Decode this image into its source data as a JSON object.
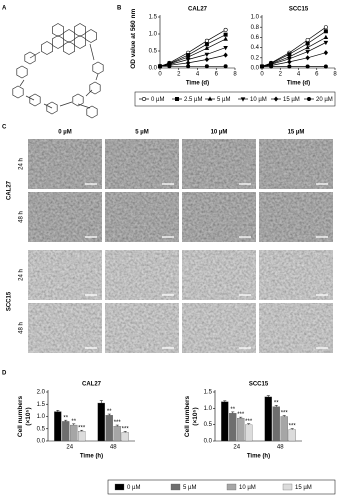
{
  "panel_labels": [
    "A",
    "B",
    "C",
    "D"
  ],
  "microscopy": {
    "columns": [
      "0 µM",
      "5 µM",
      "10 µM",
      "15 µM"
    ],
    "groups": [
      {
        "name": "CAL27",
        "rows": [
          "24 h",
          "48 h"
        ]
      },
      {
        "name": "SCC15",
        "rows": [
          "24 h",
          "48 h"
        ]
      }
    ]
  },
  "chart_data": [
    {
      "type": "line",
      "title": "CAL27",
      "xlabel": "Time (d)",
      "ylabel": "OD value at 560 nm",
      "x": [
        0,
        1,
        3,
        5,
        7
      ],
      "xlim": [
        0,
        8
      ],
      "xticks": [
        0,
        2,
        4,
        6,
        8
      ],
      "ylim": [
        0,
        1.5
      ],
      "yticks": [
        {
          "value": 0,
          "label": "0.0"
        },
        {
          "value": 0.5,
          "label": "0.5"
        },
        {
          "value": 1,
          "label": "1.0"
        },
        {
          "value": 1.5,
          "label": "1.5"
        }
      ],
      "legend": "bottom",
      "series": [
        {
          "name": "0 µM",
          "color": "#000000",
          "marker": "circle-open",
          "values": [
            0.05,
            0.15,
            0.45,
            0.8,
            1.12
          ]
        },
        {
          "name": "2.5 µM",
          "color": "#000000",
          "marker": "square",
          "values": [
            0.05,
            0.13,
            0.38,
            0.7,
            0.98
          ]
        },
        {
          "name": "5 µM",
          "color": "#000000",
          "marker": "triangle-up",
          "values": [
            0.05,
            0.12,
            0.32,
            0.58,
            0.85
          ]
        },
        {
          "name": "10 µM",
          "color": "#000000",
          "marker": "triangle-down",
          "values": [
            0.05,
            0.1,
            0.25,
            0.4,
            0.6
          ]
        },
        {
          "name": "15 µM",
          "color": "#000000",
          "marker": "diamond",
          "values": [
            0.05,
            0.08,
            0.15,
            0.25,
            0.38
          ]
        },
        {
          "name": "20 µM",
          "color": "#000000",
          "marker": "circle-filled",
          "values": [
            0.05,
            0.05,
            0.05,
            0.05,
            0.05
          ]
        }
      ]
    },
    {
      "type": "line",
      "title": "SCC15",
      "xlabel": "Time (d)",
      "x": [
        0,
        1,
        3,
        5,
        7
      ],
      "xlim": [
        0,
        8
      ],
      "xticks": [
        0,
        2,
        4,
        6,
        8
      ],
      "ylim": [
        0,
        1
      ],
      "yticks": [
        {
          "value": 0,
          "label": "0.0"
        },
        {
          "value": 0.2,
          "label": "0.2"
        },
        {
          "value": 0.4,
          "label": "0.4"
        },
        {
          "value": 0.6,
          "label": "0.6"
        },
        {
          "value": 0.8,
          "label": "0.8"
        },
        {
          "value": 1,
          "label": "1.0"
        }
      ],
      "series": [
        {
          "name": "0 µM",
          "color": "#000000",
          "marker": "circle-open",
          "values": [
            0.03,
            0.1,
            0.3,
            0.55,
            0.8
          ]
        },
        {
          "name": "2.5 µM",
          "color": "#000000",
          "marker": "square",
          "values": [
            0.03,
            0.09,
            0.27,
            0.48,
            0.72
          ]
        },
        {
          "name": "5 µM",
          "color": "#000000",
          "marker": "triangle-up",
          "values": [
            0.03,
            0.08,
            0.22,
            0.4,
            0.6
          ]
        },
        {
          "name": "10 µM",
          "color": "#000000",
          "marker": "triangle-down",
          "values": [
            0.03,
            0.07,
            0.18,
            0.32,
            0.5
          ]
        },
        {
          "name": "15 µM",
          "color": "#000000",
          "marker": "diamond",
          "values": [
            0.03,
            0.05,
            0.12,
            0.2,
            0.3
          ]
        },
        {
          "name": "20 µM",
          "color": "#000000",
          "marker": "circle-filled",
          "values": [
            0.03,
            0.03,
            0.03,
            0.03,
            0.03
          ]
        }
      ]
    },
    {
      "type": "bar",
      "title": "CAL27",
      "xlabel": "Time (h)",
      "ylabel": "Cell numbers (×10⁵)",
      "categories": [
        "24",
        "48"
      ],
      "ylim": [
        0,
        2
      ],
      "yticks": [
        {
          "value": 0,
          "label": "0.0"
        },
        {
          "value": 0.5,
          "label": "0.5"
        },
        {
          "value": 1,
          "label": "1.0"
        },
        {
          "value": 1.5,
          "label": "1.5"
        },
        {
          "value": 2,
          "label": "2.0"
        }
      ],
      "legend": "bottom",
      "series": [
        {
          "name": "0 µM",
          "color": "#000000",
          "values": [
            1.2,
            1.55
          ],
          "errors": [
            0.05,
            0.1
          ]
        },
        {
          "name": "5 µM",
          "color": "#6e6e6e",
          "values": [
            0.8,
            1.05
          ],
          "errors": [
            0.05,
            0.05
          ],
          "annotations": [
            "**",
            "**"
          ]
        },
        {
          "name": "10 µM",
          "color": "#a6a6a6",
          "values": [
            0.65,
            0.6
          ],
          "errors": [
            0.05,
            0.05
          ],
          "annotations": [
            "**",
            "***"
          ]
        },
        {
          "name": "15 µM",
          "color": "#dcdcdc",
          "values": [
            0.4,
            0.35
          ],
          "errors": [
            0.04,
            0.04
          ],
          "annotations": [
            "***",
            "***"
          ]
        }
      ]
    },
    {
      "type": "bar",
      "title": "SCC15",
      "xlabel": "Time (h)",
      "ylabel": "Cell numbers (×10⁵)",
      "categories": [
        "24",
        "48"
      ],
      "ylim": [
        0,
        1.5
      ],
      "yticks": [
        {
          "value": 0,
          "label": "0.0"
        },
        {
          "value": 0.5,
          "label": "0.5"
        },
        {
          "value": 1,
          "label": "1.0"
        },
        {
          "value": 1.5,
          "label": "1.5"
        }
      ],
      "series": [
        {
          "name": "0 µM",
          "color": "#000000",
          "values": [
            1.2,
            1.35
          ],
          "errors": [
            0.03,
            0.04
          ]
        },
        {
          "name": "5 µM",
          "color": "#6e6e6e",
          "values": [
            0.85,
            1.05
          ],
          "errors": [
            0.04,
            0.04
          ],
          "annotations": [
            "**",
            "**"
          ]
        },
        {
          "name": "10 µM",
          "color": "#a6a6a6",
          "values": [
            0.7,
            0.75
          ],
          "errors": [
            0.03,
            0.03
          ],
          "annotations": [
            "***",
            "***"
          ]
        },
        {
          "name": "15 µM",
          "color": "#dcdcdc",
          "values": [
            0.5,
            0.35
          ],
          "errors": [
            0.03,
            0.03
          ],
          "annotations": [
            "***",
            "***"
          ]
        }
      ]
    }
  ]
}
